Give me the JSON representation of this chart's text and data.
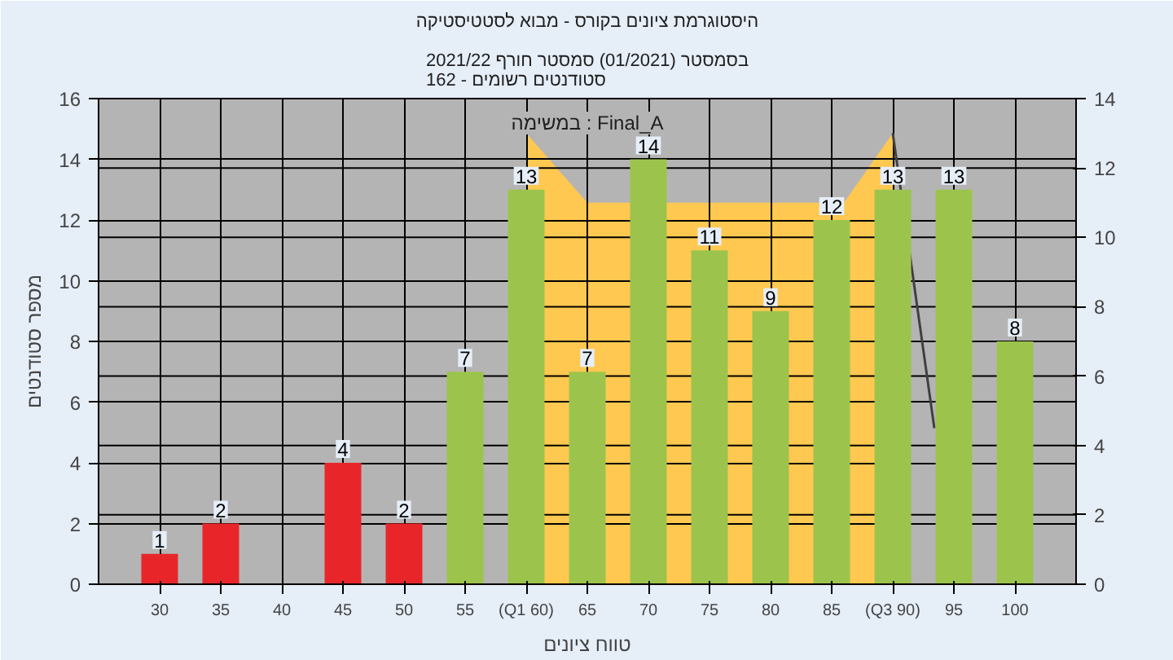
{
  "chart_data": {
    "type": "bar",
    "title": "היסטוגרמת ציונים בקורס - מבוא לסטטיסטיקה",
    "subtitle": "בסמסטר (01/2021) סמסטר חורף 2021/22\nסטודנטים רשומים - 162",
    "xlabel": "טווח ציונים",
    "ylabel": "מספר סטודנטים",
    "annotations": [
      "במשימה : Final_A"
    ],
    "x": [
      30,
      35,
      40,
      45,
      50,
      55,
      60,
      65,
      70,
      75,
      80,
      85,
      90,
      95,
      100
    ],
    "values": [
      1,
      2,
      0,
      4,
      2,
      7,
      13,
      7,
      14,
      11,
      9,
      12,
      13,
      13,
      8
    ],
    "colors": [
      "#e8262a",
      "#e8262a",
      "#e8262a",
      "#e8262a",
      "#e8262a",
      "#9cc44c",
      "#9cc44c",
      "#9cc44c",
      "#9cc44c",
      "#9cc44c",
      "#9cc44c",
      "#9cc44c",
      "#9cc44c",
      "#9cc44c",
      "#9cc44c"
    ],
    "value_labels": [
      "1",
      "2",
      null,
      "4",
      "2",
      "7",
      "13",
      "7",
      "14",
      "11",
      "9",
      "12",
      "13",
      "13",
      "8"
    ],
    "series": [
      {
        "type": "area",
        "axis": "y2",
        "color": "#ffc850",
        "x": [
          60,
          65,
          86,
          90
        ],
        "values": [
          13,
          11,
          11,
          13
        ]
      },
      {
        "type": "line",
        "axis": "y2",
        "color": "#404040",
        "x": [
          90,
          93.4
        ],
        "values": [
          13,
          4.5
        ]
      }
    ],
    "xlim": [
      25,
      105
    ],
    "xticks": [
      30,
      35,
      40,
      45,
      50,
      55,
      {
        "value": 60,
        "label": "(Q1 60)"
      },
      65,
      70,
      75,
      80,
      85,
      {
        "value": 90,
        "label": "(Q3 90)"
      },
      95,
      100
    ],
    "ylim": [
      0,
      16
    ],
    "yticks": [
      0,
      2,
      4,
      6,
      8,
      10,
      12,
      14,
      16
    ],
    "y2lim": [
      0,
      14
    ],
    "y2ticks": [
      0,
      2,
      4,
      6,
      8,
      10,
      12,
      14
    ],
    "grid": true
  }
}
